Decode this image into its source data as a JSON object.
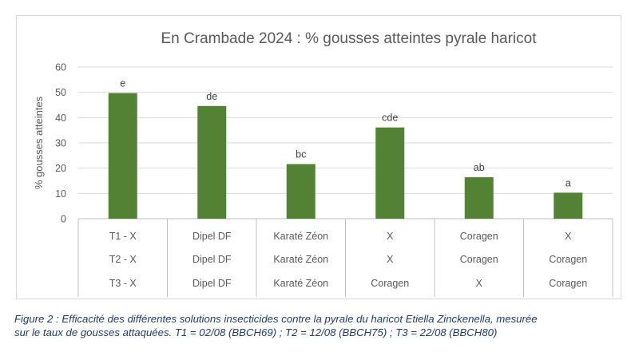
{
  "chart_data": {
    "type": "bar",
    "title": "En Crambade 2024 : % gousses atteintes pyrale haricot",
    "ylabel": "% gousses atteintes",
    "xlabel": "",
    "ylim": [
      0,
      60
    ],
    "yticks": [
      0,
      10,
      20,
      30,
      40,
      50,
      60
    ],
    "grid": true,
    "legend": "none",
    "categories": [
      [
        "T1 - X",
        "T2 - X",
        "T3 - X"
      ],
      [
        "Dipel DF",
        "Dipel DF",
        "Dipel DF"
      ],
      [
        "Karaté Zéon",
        "Karaté Zéon",
        "Karaté Zéon"
      ],
      [
        "X",
        "X",
        "Coragen"
      ],
      [
        "Coragen",
        "Coragen",
        "X"
      ],
      [
        "X",
        "Coragen",
        "Coragen"
      ]
    ],
    "values": [
      49.7,
      44.6,
      21.6,
      36.1,
      16.4,
      10.3
    ],
    "data_labels": [
      "e",
      "de",
      "bc",
      "cde",
      "ab",
      "a"
    ],
    "bar_color": "#548235"
  },
  "caption": {
    "line1": "Figure 2 : Efficacité des différentes solutions insecticides contre la pyrale du haricot Etiella Zinckenella, mesurée",
    "line2": "sur le taux de gousses attaquées. T1 = 02/08 (BBCH69) ; T2 = 12/08 (BBCH75) ; T3 = 22/08 (BBCH80)"
  }
}
